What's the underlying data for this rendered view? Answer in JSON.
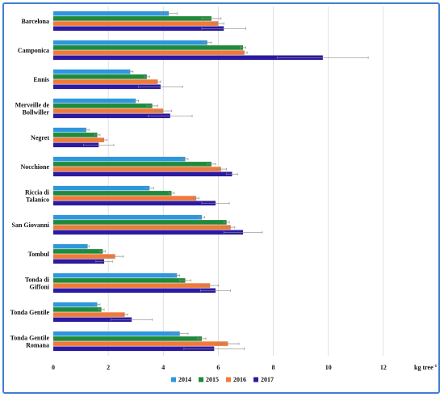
{
  "chart_data": {
    "type": "bar",
    "orientation": "horizontal",
    "categories": [
      "Barcelona",
      "Camponica",
      "Ennis",
      "Merveille de Bollwiller",
      "Negret",
      "Nocchione",
      "Riccia di Talanico",
      "San Giovanni",
      "Tombul",
      "Tonda di Giffoni",
      "Tonda Gentile",
      "Tonda Gentile Romana"
    ],
    "series": [
      {
        "name": "2014",
        "color": "#2e97dc",
        "values": [
          4.2,
          5.6,
          2.8,
          3.0,
          1.2,
          4.8,
          3.5,
          5.4,
          1.25,
          4.5,
          1.6,
          4.6
        ],
        "errors": [
          0.3,
          0.15,
          0.1,
          0.1,
          0.1,
          0.1,
          0.15,
          0.1,
          0.05,
          0.1,
          0.1,
          0.3
        ]
      },
      {
        "name": "2015",
        "color": "#1f8a3c",
        "values": [
          5.75,
          6.9,
          3.4,
          3.6,
          1.6,
          5.75,
          4.3,
          6.3,
          1.8,
          4.8,
          1.75,
          5.4
        ],
        "errors": [
          0.35,
          0.1,
          0.1,
          0.2,
          0.1,
          0.15,
          0.1,
          0.1,
          0.1,
          0.2,
          0.1,
          0.15
        ]
      },
      {
        "name": "2016",
        "color": "#f07a3a",
        "values": [
          6.0,
          6.95,
          3.8,
          4.0,
          1.85,
          6.1,
          5.2,
          6.45,
          2.25,
          5.7,
          2.6,
          6.35
        ],
        "errors": [
          0.2,
          0.1,
          0.1,
          0.3,
          0.1,
          0.2,
          0.1,
          0.15,
          0.3,
          0.3,
          0.1,
          0.4
        ]
      },
      {
        "name": "2017",
        "color": "#2c1aa0",
        "values": [
          6.2,
          9.8,
          3.9,
          4.25,
          1.65,
          6.5,
          5.9,
          6.9,
          1.85,
          5.9,
          2.85,
          5.85
        ],
        "errors": [
          0.8,
          1.65,
          0.8,
          0.8,
          0.55,
          0.2,
          0.5,
          0.7,
          0.3,
          0.55,
          0.75,
          1.1
        ]
      }
    ],
    "xlim": [
      0,
      14
    ],
    "xticks": [
      0,
      2,
      4,
      6,
      8,
      10,
      12
    ],
    "xunit": "kg tree",
    "xunit_sup": "-1",
    "grid": true,
    "legend_position": "bottom"
  }
}
